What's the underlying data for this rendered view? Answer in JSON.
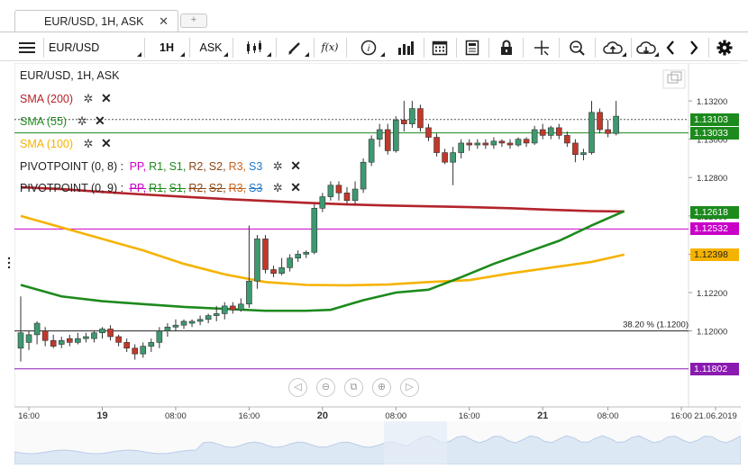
{
  "tab": {
    "title": "EUR/USD, 1H, ASK",
    "close": "✕",
    "add": "+"
  },
  "toolbar": {
    "symbol": "EUR/USD",
    "timeframe": "1H",
    "side": "ASK",
    "fx_label": "f(x)",
    "info_label": "i"
  },
  "chart_title": "EUR/USD, 1H, ASK",
  "indicators": [
    {
      "label": "SMA (200)",
      "color": "#b3232b"
    },
    {
      "label": "SMA (55)",
      "color": "#1c8a1c"
    },
    {
      "label": "SMA (100)",
      "color": "#f5b301"
    }
  ],
  "pivots": [
    {
      "label": "PIVOTPOINT (0, 8)",
      "items": [
        "PP",
        "R1",
        "S1",
        "R2",
        "S2",
        "R3",
        "S3"
      ],
      "strike": false
    },
    {
      "label": "PIVOTPOINT (0, 9)",
      "items": [
        "PP",
        "R1",
        "S1",
        "R2",
        "S2",
        "R3",
        "S3"
      ],
      "strike": true
    }
  ],
  "pivot_colors": [
    "#c800c8",
    "#1c8a1c",
    "#1c8a1c",
    "#8b4513",
    "#8b4513",
    "#c8641e",
    "#1e78c8"
  ],
  "fib_label": "38.20 % (1.1200)",
  "price_labels": [
    {
      "text": "1.13103",
      "price": 1.13103,
      "color": "#1c8a1c"
    },
    {
      "text": "1.13033",
      "price": 1.13033,
      "color": "#1c8a1c"
    },
    {
      "text": "1.12618",
      "price": 1.12618,
      "color": "#1c8a1c"
    },
    {
      "text": "1.12532",
      "price": 1.12532,
      "color": "#c800c8"
    },
    {
      "text": "1.12398",
      "price": 1.12398,
      "color": "#f5b301"
    },
    {
      "text": "1.11802",
      "price": 1.11802,
      "color": "#8a1ab0"
    }
  ],
  "chart_data": {
    "type": "candlestick",
    "y_ticks": [
      "1.13200",
      "1.13000",
      "1.12800",
      "1.12600",
      "1.12400",
      "1.12200",
      "1.12000"
    ],
    "ylim": [
      1.1166,
      1.1336
    ],
    "x_ticks": [
      "16:00",
      "19",
      "08:00",
      "16:00",
      "20",
      "08:00",
      "16:00",
      "21",
      "08:00",
      "16:00",
      "21.06.2019"
    ],
    "candles": [
      [
        1.1191,
        1.1199,
        1.1184,
        1.1218
      ],
      [
        1.1194,
        1.1198,
        1.119,
        1.12
      ],
      [
        1.1198,
        1.1204,
        1.1193,
        1.1205
      ],
      [
        1.12,
        1.1195,
        1.1192,
        1.1202
      ],
      [
        1.1195,
        1.1192,
        1.1191,
        1.1198
      ],
      [
        1.1193,
        1.1195,
        1.1191,
        1.1197
      ],
      [
        1.1196,
        1.1194,
        1.1192,
        1.1198
      ],
      [
        1.1194,
        1.1196,
        1.1193,
        1.1199
      ],
      [
        1.1196,
        1.1197,
        1.1194,
        1.1199
      ],
      [
        1.1196,
        1.1199,
        1.1194,
        1.12
      ],
      [
        1.1199,
        1.1201,
        1.1196,
        1.1202
      ],
      [
        1.1201,
        1.1197,
        1.1195,
        1.1203
      ],
      [
        1.1197,
        1.1194,
        1.1192,
        1.1198
      ],
      [
        1.1194,
        1.1191,
        1.1189,
        1.1196
      ],
      [
        1.1191,
        1.1188,
        1.1185,
        1.1193
      ],
      [
        1.1188,
        1.1192,
        1.1186,
        1.1194
      ],
      [
        1.1192,
        1.1194,
        1.1189,
        1.1196
      ],
      [
        1.1194,
        1.12,
        1.1191,
        1.1202
      ],
      [
        1.12,
        1.1202,
        1.1197,
        1.1204
      ],
      [
        1.1202,
        1.1203,
        1.12,
        1.1206
      ],
      [
        1.1203,
        1.1205,
        1.1201,
        1.1206
      ],
      [
        1.1204,
        1.1205,
        1.1202,
        1.1206
      ],
      [
        1.1205,
        1.1206,
        1.1203,
        1.1208
      ],
      [
        1.1206,
        1.1208,
        1.1204,
        1.1209
      ],
      [
        1.1208,
        1.1209,
        1.1205,
        1.1213
      ],
      [
        1.1209,
        1.1213,
        1.1206,
        1.1215
      ],
      [
        1.1213,
        1.1211,
        1.1209,
        1.1215
      ],
      [
        1.1211,
        1.1214,
        1.121,
        1.1217
      ],
      [
        1.1214,
        1.1226,
        1.1212,
        1.1255
      ],
      [
        1.1226,
        1.1248,
        1.1222,
        1.125
      ],
      [
        1.1248,
        1.1232,
        1.123,
        1.125
      ],
      [
        1.1232,
        1.123,
        1.1228,
        1.1234
      ],
      [
        1.123,
        1.1233,
        1.1229,
        1.1238
      ],
      [
        1.1233,
        1.1238,
        1.1231,
        1.124
      ],
      [
        1.1238,
        1.124,
        1.1236,
        1.1242
      ],
      [
        1.124,
        1.1241,
        1.1238,
        1.1242
      ],
      [
        1.1241,
        1.1264,
        1.124,
        1.1266
      ],
      [
        1.1264,
        1.127,
        1.1262,
        1.1272
      ],
      [
        1.127,
        1.1276,
        1.1268,
        1.1278
      ],
      [
        1.1276,
        1.1272,
        1.1268,
        1.1278
      ],
      [
        1.1272,
        1.1268,
        1.1266,
        1.1275
      ],
      [
        1.1268,
        1.1274,
        1.1266,
        1.1278
      ],
      [
        1.1274,
        1.1288,
        1.1272,
        1.129
      ],
      [
        1.1288,
        1.13,
        1.1286,
        1.1302
      ],
      [
        1.13,
        1.1305,
        1.1296,
        1.1308
      ],
      [
        1.1305,
        1.1294,
        1.1292,
        1.1308
      ],
      [
        1.1294,
        1.131,
        1.1293,
        1.1312
      ],
      [
        1.131,
        1.1308,
        1.1304,
        1.132
      ],
      [
        1.1308,
        1.1316,
        1.1306,
        1.132
      ],
      [
        1.1316,
        1.1306,
        1.1304,
        1.1318
      ],
      [
        1.1306,
        1.1301,
        1.1299,
        1.1308
      ],
      [
        1.1301,
        1.1293,
        1.1291,
        1.1303
      ],
      [
        1.1293,
        1.1288,
        1.1287,
        1.1295
      ],
      [
        1.1288,
        1.1293,
        1.1276,
        1.1296
      ],
      [
        1.1293,
        1.1298,
        1.129,
        1.13
      ],
      [
        1.1298,
        1.1297,
        1.1294,
        1.13
      ],
      [
        1.1297,
        1.1298,
        1.1295,
        1.13
      ],
      [
        1.1298,
        1.1297,
        1.1295,
        1.13
      ],
      [
        1.1297,
        1.1299,
        1.1295,
        1.1301
      ],
      [
        1.1299,
        1.1298,
        1.1296,
        1.13
      ],
      [
        1.1298,
        1.1297,
        1.1295,
        1.13
      ],
      [
        1.1297,
        1.13,
        1.1296,
        1.1301
      ],
      [
        1.13,
        1.1298,
        1.1296,
        1.1301
      ],
      [
        1.1298,
        1.1305,
        1.1297,
        1.1307
      ],
      [
        1.1305,
        1.1302,
        1.13,
        1.1308
      ],
      [
        1.1302,
        1.1306,
        1.13,
        1.1307
      ],
      [
        1.1306,
        1.1302,
        1.13,
        1.1308
      ],
      [
        1.1302,
        1.1298,
        1.1296,
        1.1304
      ],
      [
        1.1298,
        1.1292,
        1.1288,
        1.13
      ],
      [
        1.1292,
        1.1293,
        1.1289,
        1.1295
      ],
      [
        1.1293,
        1.1314,
        1.1292,
        1.132
      ],
      [
        1.1314,
        1.1305,
        1.1303,
        1.1316
      ],
      [
        1.1305,
        1.1303,
        1.1301,
        1.131
      ],
      [
        1.1303,
        1.1312,
        1.1302,
        1.132
      ]
    ],
    "sma200": [
      [
        0,
        1.1275
      ],
      [
        5,
        1.1274
      ],
      [
        10,
        1.12725
      ],
      [
        15,
        1.12712
      ],
      [
        20,
        1.127
      ],
      [
        25,
        1.12688
      ],
      [
        30,
        1.12678
      ],
      [
        35,
        1.12668
      ],
      [
        40,
        1.1266
      ],
      [
        45,
        1.12654
      ],
      [
        50,
        1.1265
      ],
      [
        55,
        1.12646
      ],
      [
        60,
        1.1264
      ],
      [
        65,
        1.12632
      ],
      [
        70,
        1.12625
      ],
      [
        74,
        1.12623
      ]
    ],
    "sma55": [
      [
        0,
        1.1224
      ],
      [
        5,
        1.1218
      ],
      [
        10,
        1.12155
      ],
      [
        15,
        1.1214
      ],
      [
        20,
        1.12125
      ],
      [
        25,
        1.12115
      ],
      [
        30,
        1.12105
      ],
      [
        35,
        1.12105
      ],
      [
        38,
        1.1211
      ],
      [
        42,
        1.1216
      ],
      [
        46,
        1.122
      ],
      [
        50,
        1.12215
      ],
      [
        54,
        1.1228
      ],
      [
        58,
        1.1235
      ],
      [
        62,
        1.1241
      ],
      [
        66,
        1.1247
      ],
      [
        70,
        1.1255
      ],
      [
        74,
        1.12625
      ]
    ],
    "sma100": [
      [
        0,
        1.126
      ],
      [
        5,
        1.1254
      ],
      [
        10,
        1.1248
      ],
      [
        15,
        1.1242
      ],
      [
        20,
        1.1235
      ],
      [
        25,
        1.12295
      ],
      [
        30,
        1.12255
      ],
      [
        35,
        1.1224
      ],
      [
        40,
        1.12238
      ],
      [
        45,
        1.12242
      ],
      [
        50,
        1.12255
      ],
      [
        55,
        1.12265
      ],
      [
        60,
        1.123
      ],
      [
        65,
        1.1233
      ],
      [
        70,
        1.1236
      ],
      [
        74,
        1.12398
      ]
    ]
  },
  "horizontal_lines": [
    {
      "price": 1.13103,
      "color": "#555555",
      "style": "dotted"
    },
    {
      "price": 1.13033,
      "color": "#1c8a1c",
      "style": "solid"
    },
    {
      "price": 1.12532,
      "color": "#c800c8",
      "style": "solid"
    },
    {
      "price": 1.12,
      "color": "#222222",
      "style": "solid"
    },
    {
      "price": 1.11802,
      "color": "#8a1ab0",
      "style": "solid"
    }
  ]
}
